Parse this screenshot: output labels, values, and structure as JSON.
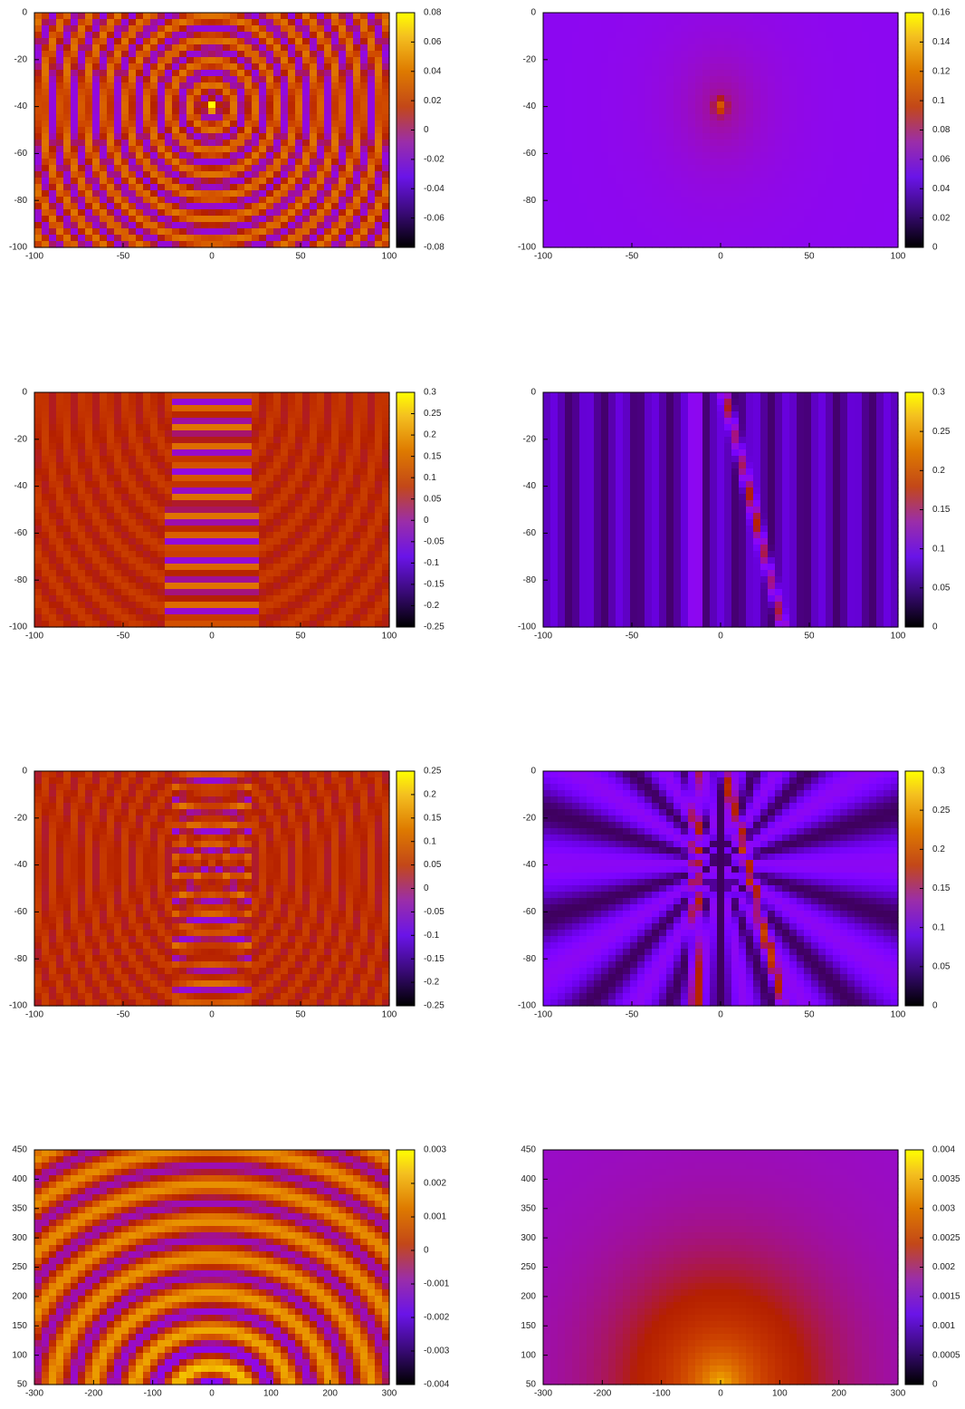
{
  "chart_data": [
    {
      "type": "heatmap",
      "xlim": [
        -100,
        100
      ],
      "xticks": [
        -100,
        -50,
        0,
        50,
        100
      ],
      "ylim": [
        -100,
        0
      ],
      "yticks": [
        0,
        -20,
        -40,
        -60,
        -80,
        -100
      ],
      "clim": [
        -0.08,
        0.08
      ],
      "cticks": [
        0.08,
        0.06,
        0.04,
        0.02,
        0,
        -0.02,
        -0.04,
        -0.06,
        -0.08
      ]
    },
    {
      "type": "heatmap",
      "xlim": [
        -100,
        100
      ],
      "xticks": [
        -100,
        -50,
        0,
        50,
        100
      ],
      "ylim": [
        -100,
        0
      ],
      "yticks": [
        0,
        -20,
        -40,
        -60,
        -80,
        -100
      ],
      "clim": [
        0,
        0.16
      ],
      "cticks": [
        0.16,
        0.14,
        0.12,
        0.1,
        0.08,
        0.06,
        0.04,
        0.02,
        0
      ]
    },
    {
      "type": "heatmap",
      "xlim": [
        -100,
        100
      ],
      "xticks": [
        -100,
        -50,
        0,
        50,
        100
      ],
      "ylim": [
        -100,
        0
      ],
      "yticks": [
        0,
        -20,
        -40,
        -60,
        -80,
        -100
      ],
      "clim": [
        -0.25,
        0.3
      ],
      "cticks": [
        0.3,
        0.25,
        0.2,
        0.15,
        0.1,
        0.05,
        0,
        -0.05,
        -0.1,
        -0.15,
        -0.2,
        -0.25
      ]
    },
    {
      "type": "heatmap",
      "xlim": [
        -100,
        100
      ],
      "xticks": [
        -100,
        -50,
        0,
        50,
        100
      ],
      "ylim": [
        -100,
        0
      ],
      "yticks": [
        0,
        -20,
        -40,
        -60,
        -80,
        -100
      ],
      "clim": [
        0,
        0.3
      ],
      "cticks": [
        0.3,
        0.25,
        0.2,
        0.15,
        0.1,
        0.05,
        0
      ]
    },
    {
      "type": "heatmap",
      "xlim": [
        -100,
        100
      ],
      "xticks": [
        -100,
        -50,
        0,
        50,
        100
      ],
      "ylim": [
        -100,
        0
      ],
      "yticks": [
        0,
        -20,
        -40,
        -60,
        -80,
        -100
      ],
      "clim": [
        -0.25,
        0.25
      ],
      "cticks": [
        0.25,
        0.2,
        0.15,
        0.1,
        0.05,
        0,
        -0.05,
        -0.1,
        -0.15,
        -0.2,
        -0.25
      ]
    },
    {
      "type": "heatmap",
      "xlim": [
        -100,
        100
      ],
      "xticks": [
        -100,
        -50,
        0,
        50,
        100
      ],
      "ylim": [
        -100,
        0
      ],
      "yticks": [
        0,
        -20,
        -40,
        -60,
        -80,
        -100
      ],
      "clim": [
        0,
        0.3
      ],
      "cticks": [
        0.3,
        0.25,
        0.2,
        0.15,
        0.1,
        0.05,
        0
      ]
    },
    {
      "type": "heatmap",
      "xlim": [
        -300,
        300
      ],
      "xticks": [
        -300,
        -200,
        -100,
        0,
        100,
        200,
        300
      ],
      "ylim": [
        50,
        450
      ],
      "yticks": [
        450,
        400,
        350,
        300,
        250,
        200,
        150,
        100,
        50
      ],
      "clim": [
        -0.004,
        0.003
      ],
      "cticks": [
        0.003,
        0.002,
        0.001,
        0,
        -0.001,
        -0.002,
        -0.003,
        -0.004
      ]
    },
    {
      "type": "heatmap",
      "xlim": [
        -300,
        300
      ],
      "xticks": [
        -300,
        -200,
        -100,
        0,
        100,
        200,
        300
      ],
      "ylim": [
        50,
        450
      ],
      "yticks": [
        450,
        400,
        350,
        300,
        250,
        200,
        150,
        100,
        50
      ],
      "clim": [
        0,
        0.004
      ],
      "cticks": [
        0.004,
        0.0035,
        0.003,
        0.0025,
        0.002,
        0.0015,
        0.001,
        0.0005,
        0
      ]
    }
  ]
}
